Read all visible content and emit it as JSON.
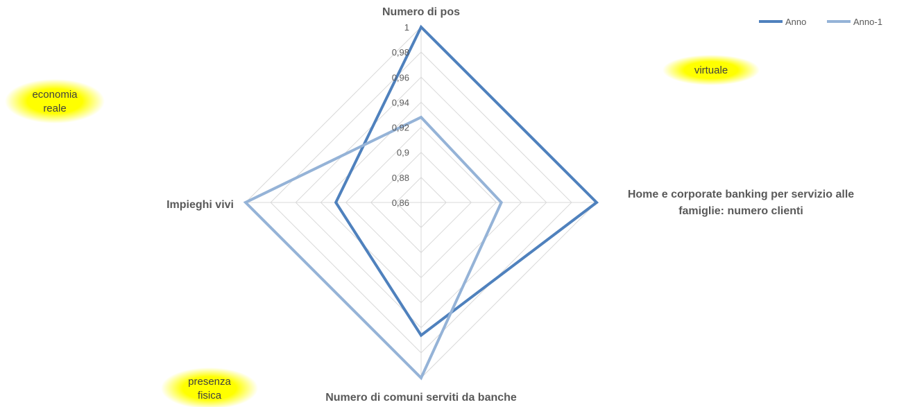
{
  "chart_data": {
    "type": "radar",
    "axes": [
      {
        "label_lines": [
          "Numero di pos"
        ]
      },
      {
        "label_lines": [
          "Home e corporate banking per servizio alle",
          "famiglie: numero clienti"
        ]
      },
      {
        "label_lines": [
          "Numero di comuni serviti da banche"
        ]
      },
      {
        "label_lines": [
          "Impieghi vivi"
        ]
      }
    ],
    "r_min": 0.86,
    "r_max": 1.0,
    "ticks": [
      "0,86",
      "0,88",
      "0,9",
      "0,92",
      "0,94",
      "0,96",
      "0,98",
      "1"
    ],
    "tick_values": [
      0.86,
      0.88,
      0.9,
      0.92,
      0.94,
      0.96,
      0.98,
      1.0
    ],
    "series": [
      {
        "name": "Anno",
        "values": [
          1.0,
          1.0,
          0.966,
          0.928
        ],
        "color": "#4f81bd"
      },
      {
        "name": "Anno-1",
        "values": [
          0.928,
          0.924,
          1.0,
          1.0
        ],
        "color": "#95b3d7"
      }
    ],
    "legend": {
      "position": "top-right"
    },
    "grid": true
  },
  "annotations": [
    {
      "lines": [
        "economia",
        "reale"
      ]
    },
    {
      "lines": [
        "virtuale"
      ]
    },
    {
      "lines": [
        "presenza",
        "fisica"
      ]
    }
  ],
  "colors": {
    "grid": "#d9d9d9",
    "highlight": "#ffff00",
    "text": "#595959"
  }
}
